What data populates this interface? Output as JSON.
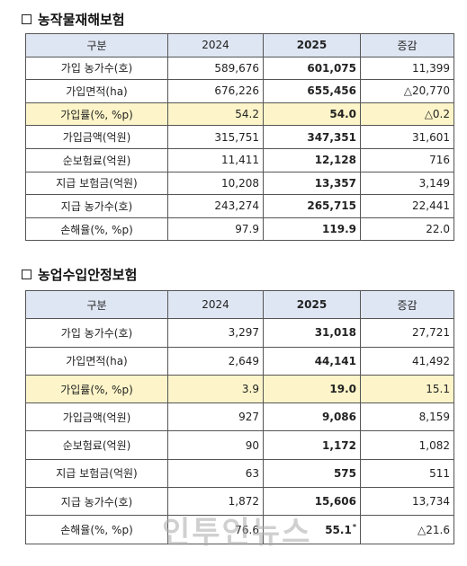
{
  "section1": {
    "title": "농작물재해보험",
    "headers": [
      "구분",
      "2024",
      "2025",
      "증감"
    ],
    "rows": [
      {
        "label": "가입 농가수(호)",
        "v2024": "589,676",
        "v2025": "601,075",
        "diff": "11,399"
      },
      {
        "label": "가입면적(ha)",
        "v2024": "676,226",
        "v2025": "655,456",
        "diff": "△20,770"
      },
      {
        "label": "가입률(%, %p)",
        "v2024": "54.2",
        "v2025": "54.0",
        "diff": "△0.2"
      },
      {
        "label": "가입금액(억원)",
        "v2024": "315,751",
        "v2025": "347,351",
        "diff": "31,601"
      },
      {
        "label": "순보험료(억원)",
        "v2024": "11,411",
        "v2025": "12,128",
        "diff": "716"
      },
      {
        "label": "지급 보험금(억원)",
        "v2024": "10,208",
        "v2025": "13,357",
        "diff": "3,149"
      },
      {
        "label": "지급 농가수(호)",
        "v2024": "243,274",
        "v2025": "265,715",
        "diff": "22,441"
      },
      {
        "label": "손해율(%, %p)",
        "v2024": "97.9",
        "v2025": "119.9",
        "diff": "22.0"
      }
    ]
  },
  "section2": {
    "title": "농업수입안정보험",
    "headers": [
      "구분",
      "2024",
      "2025",
      "증감"
    ],
    "rows": [
      {
        "label": "가입 농가수(호)",
        "v2024": "3,297",
        "v2025": "31,018",
        "diff": "27,721"
      },
      {
        "label": "가입면적(ha)",
        "v2024": "2,649",
        "v2025": "44,141",
        "diff": "41,492"
      },
      {
        "label": "가입률(%, %p)",
        "v2024": "3.9",
        "v2025": "19.0",
        "diff": "15.1"
      },
      {
        "label": "가입금액(억원)",
        "v2024": "927",
        "v2025": "9,086",
        "diff": "8,159"
      },
      {
        "label": "순보험료(억원)",
        "v2024": "90",
        "v2025": "1,172",
        "diff": "1,082"
      },
      {
        "label": "지급 보험금(억원)",
        "v2024": "63",
        "v2025": "575",
        "diff": "511"
      },
      {
        "label": "지급 농가수(호)",
        "v2024": "1,872",
        "v2025": "15,606",
        "diff": "13,734"
      },
      {
        "label": "손해율(%, %p)",
        "v2024": "76.6",
        "v2025": "55.1",
        "v2025_mark": "*",
        "diff": "△21.6"
      }
    ]
  },
  "watermark": "인투인뉴스"
}
